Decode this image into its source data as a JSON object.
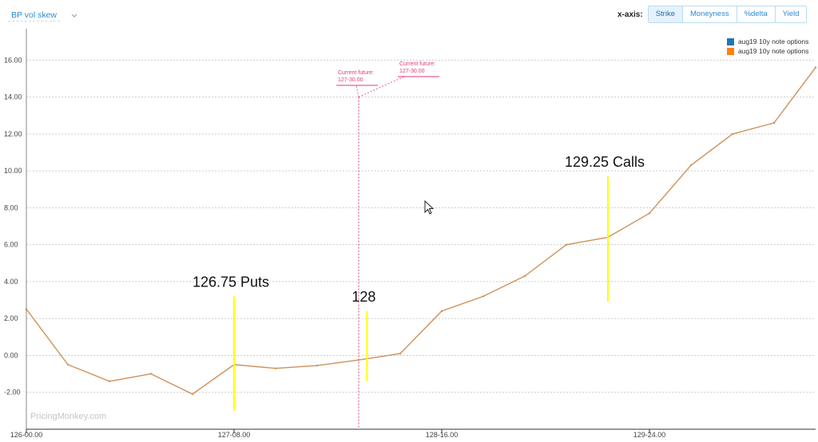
{
  "header": {
    "selector_label": "BP vol skew",
    "xaxis_label": "x-axis:",
    "xaxis_options": [
      "Strike",
      "Moneyness",
      "%delta",
      "Yield"
    ],
    "xaxis_active": "Strike"
  },
  "watermark": "PricingMonkey.com",
  "colors": {
    "line": "#cd915a",
    "marker": "#ffff00",
    "future_line": "#e33a7b",
    "grid": "#cccccc",
    "accent": "#2a8ad6"
  },
  "chart_data": {
    "type": "line",
    "title": "",
    "xlabel": "",
    "ylabel": "",
    "x_tick_labels": [
      "126-00.00",
      "127-08.00",
      "128-16.00",
      "129-24.00"
    ],
    "x_tick_values": [
      126.0,
      127.25,
      128.5,
      129.75
    ],
    "xlim": [
      126.0,
      130.75
    ],
    "y_tick_labels": [
      "-2.00",
      "0.00",
      "2.00",
      "4.00",
      "6.00",
      "8.00",
      "10.00",
      "12.00",
      "14.00",
      "16.00"
    ],
    "y_tick_values": [
      -2,
      0,
      2,
      4,
      6,
      8,
      10,
      12,
      14,
      16
    ],
    "ylim": [
      -4.0,
      17.7
    ],
    "grid": true,
    "legend_position": "top-right",
    "legend": [
      {
        "name": "aug19 10y note options",
        "color": "#1f77b4"
      },
      {
        "name": "aug19 10y note options",
        "color": "#ff7f0e"
      }
    ],
    "series": [
      {
        "name": "aug19 10y note options",
        "x": [
          126.0,
          126.25,
          126.5,
          126.75,
          127.0,
          127.25,
          127.5,
          127.75,
          128.0,
          128.25,
          128.5,
          128.75,
          129.0,
          129.25,
          129.5,
          129.75,
          130.0,
          130.25,
          130.5,
          130.75
        ],
        "y": [
          2.5,
          -0.5,
          -1.4,
          -1.0,
          -2.1,
          -0.5,
          -0.7,
          -0.55,
          -0.25,
          0.1,
          2.4,
          3.2,
          4.3,
          6.0,
          6.4,
          7.7,
          10.3,
          12.0,
          12.6,
          15.6
        ]
      }
    ],
    "current_future": {
      "value": 128.0,
      "labels": [
        {
          "line1": "Current future:",
          "line2": "127-30.00"
        },
        {
          "line1": "Current future:",
          "line2": "127-30.00"
        }
      ]
    },
    "annotations": [
      {
        "text": "126.75 Puts",
        "x": 127.25,
        "y_low": -3.0,
        "y_high": 3.2
      },
      {
        "text": "128",
        "x": 128.05,
        "y_low": -1.4,
        "y_high": 2.4
      },
      {
        "text": "129.25 Calls",
        "x": 129.5,
        "y_low": 2.9,
        "y_high": 9.7
      }
    ]
  }
}
